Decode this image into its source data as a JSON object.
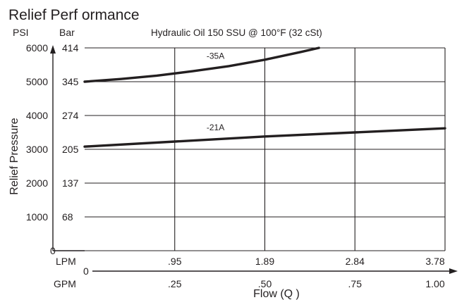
{
  "chart_data": {
    "type": "line",
    "title": "Relief Perf ormance",
    "subtitle": "Hydraulic Oil 150 SSU @ 100°F (32 cSt)",
    "xlabel": "Flow (Q )",
    "ylabel": "Relief Pressure",
    "y_units": [
      "PSI",
      "Bar"
    ],
    "x_units": [
      "LPM",
      "GPM"
    ],
    "psi_ticks": [
      "6000",
      "5000",
      "4000",
      "3000",
      "2000",
      "1000",
      "0"
    ],
    "bar_ticks": [
      "414",
      "345",
      "274",
      "205",
      "137",
      "68"
    ],
    "lpm_ticks": [
      ".95",
      "1.89",
      "2.84",
      "3.78"
    ],
    "gpm_ticks": [
      "0",
      ".25",
      ".50",
      ".75",
      "1.00"
    ],
    "xlim_gpm": [
      0,
      1.0
    ],
    "ylim_psi": [
      0,
      6000
    ],
    "grid": true,
    "series": [
      {
        "name": "-35A",
        "x_gpm": [
          0,
          0.1,
          0.2,
          0.3,
          0.4,
          0.5,
          0.6,
          0.65
        ],
        "y_psi": [
          5000,
          5080,
          5180,
          5310,
          5460,
          5650,
          5880,
          6000
        ]
      },
      {
        "name": "-21A",
        "x_gpm": [
          0,
          0.25,
          0.5,
          0.75,
          1.0
        ],
        "y_psi": [
          3080,
          3230,
          3380,
          3500,
          3620
        ]
      }
    ]
  }
}
